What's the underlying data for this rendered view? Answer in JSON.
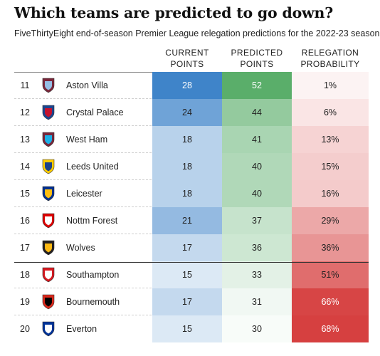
{
  "title": "Which teams are predicted to go down?",
  "subtitle": "FiveThirtyEight end-of-season Premier League relegation predictions for the 2022-23 season",
  "headers": {
    "current": [
      "CURRENT",
      "POINTS"
    ],
    "predicted": [
      "PREDICTED",
      "POINTS"
    ],
    "probability": [
      "RELEGATION",
      "PROBABILITY"
    ]
  },
  "colors": {
    "current_scale": "#3f84c9",
    "predicted_scale": "#5aae6a",
    "probability_scale": "#d64040"
  },
  "chart_data": {
    "type": "table",
    "title": "Which teams are predicted to go down?",
    "subtitle": "FiveThirtyEight end-of-season Premier League relegation predictions for the 2022-23 season",
    "columns": [
      "CURRENT POINTS",
      "PREDICTED POINTS",
      "RELEGATION PROBABILITY"
    ],
    "rows": [
      {
        "rank": "11",
        "team": "Aston Villa",
        "crest": "aston-villa-crest",
        "current": 28,
        "predicted": 52,
        "probability": "1%",
        "prob_value": 1
      },
      {
        "rank": "12",
        "team": "Crystal Palace",
        "crest": "crystal-palace-crest",
        "current": 24,
        "predicted": 44,
        "probability": "6%",
        "prob_value": 6
      },
      {
        "rank": "13",
        "team": "West Ham",
        "crest": "west-ham-crest",
        "current": 18,
        "predicted": 41,
        "probability": "13%",
        "prob_value": 13
      },
      {
        "rank": "14",
        "team": "Leeds United",
        "crest": "leeds-united-crest",
        "current": 18,
        "predicted": 40,
        "probability": "15%",
        "prob_value": 15
      },
      {
        "rank": "15",
        "team": "Leicester",
        "crest": "leicester-crest",
        "current": 18,
        "predicted": 40,
        "probability": "16%",
        "prob_value": 16
      },
      {
        "rank": "16",
        "team": "Nottm Forest",
        "crest": "nottm-forest-crest",
        "current": 21,
        "predicted": 37,
        "probability": "29%",
        "prob_value": 29
      },
      {
        "rank": "17",
        "team": "Wolves",
        "crest": "wolves-crest",
        "current": 17,
        "predicted": 36,
        "probability": "36%",
        "prob_value": 36
      },
      {
        "rank": "18",
        "team": "Southampton",
        "crest": "southampton-crest",
        "current": 15,
        "predicted": 33,
        "probability": "51%",
        "prob_value": 51
      },
      {
        "rank": "19",
        "team": "Bournemouth",
        "crest": "bournemouth-crest",
        "current": 17,
        "predicted": 31,
        "probability": "66%",
        "prob_value": 66
      },
      {
        "rank": "20",
        "team": "Everton",
        "crest": "everton-crest",
        "current": 15,
        "predicted": 30,
        "probability": "68%",
        "prob_value": 68
      }
    ]
  }
}
